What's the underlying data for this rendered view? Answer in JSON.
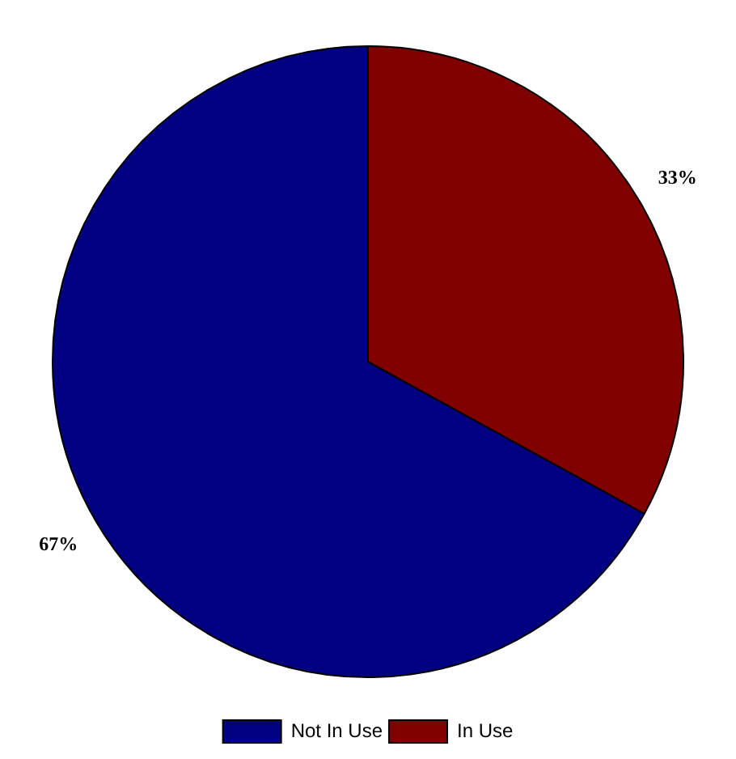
{
  "chart_data": {
    "type": "pie",
    "categories": [
      "Not In Use",
      "In Use"
    ],
    "values": [
      67,
      33
    ],
    "colors": [
      "#000080",
      "#800000"
    ],
    "value_labels": [
      "67%",
      "33%"
    ],
    "legend": "bottom"
  }
}
